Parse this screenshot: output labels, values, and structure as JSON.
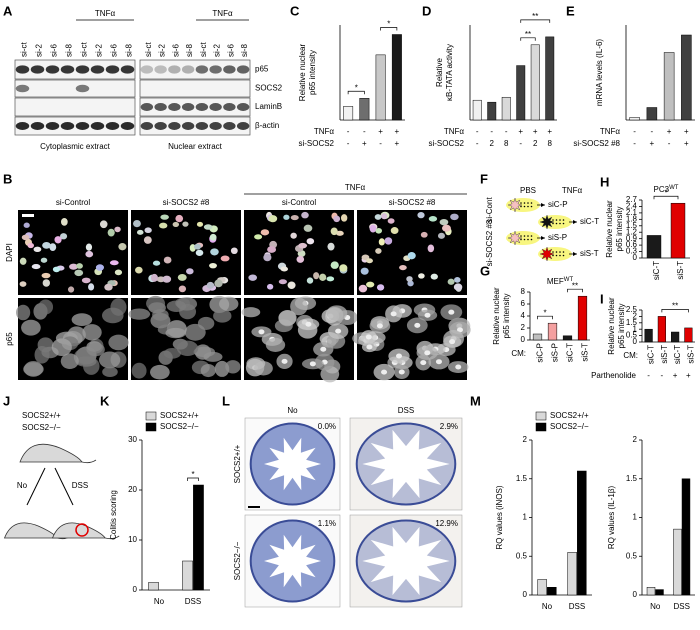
{
  "panel_labels": [
    "A",
    "B",
    "C",
    "D",
    "E",
    "F",
    "G",
    "H",
    "I",
    "J",
    "K",
    "L",
    "M"
  ],
  "blot": {
    "lanes": [
      "si-ct",
      "si-2",
      "si-6",
      "si-8",
      "si-ct",
      "si-2",
      "si-6",
      "si-8"
    ],
    "treatment": "TNFα",
    "proteins": [
      "p65",
      "SOCS2",
      "LaminB",
      "β-actin"
    ],
    "extracts": [
      "Cytoplasmic extract",
      "Nuclear extract"
    ]
  },
  "microscopy": {
    "columns": [
      "si-Control",
      "si-SOCS2 #8",
      "si-Control",
      "si-SOCS2 #8"
    ],
    "treatment": "TNFα",
    "rows": [
      "DAPI",
      "p65"
    ]
  },
  "diagram_f": {
    "conditions": [
      "PBS",
      "TNFα"
    ],
    "rows": [
      "si-Cont",
      "si-SOCS2 #8"
    ],
    "media": [
      "siC-P",
      "siC-T",
      "siS-P",
      "siS-T"
    ]
  },
  "diagram_j": {
    "genotypes": [
      "SOCS2+/+",
      "SOCS2−/−"
    ],
    "treatments": [
      "No",
      "DSS"
    ]
  },
  "histology": {
    "columns": [
      "No",
      "DSS"
    ],
    "rows": [
      "SOCS2+/+",
      "SOCS2−/−"
    ],
    "percentages": [
      [
        "0.0%",
        "2.9%"
      ],
      [
        "1.1%",
        "12.9%"
      ]
    ]
  },
  "chart_data": [
    {
      "type": "bar",
      "ylabel": [
        "Relative nuclear",
        "p65 intensity"
      ],
      "values": [
        1.0,
        1.6,
        4.8,
        6.3
      ],
      "colors": [
        "#f2f2f2",
        "#6e6e6e",
        "#c8c8c8",
        "#1a1a1a"
      ],
      "ylim": [
        0,
        7
      ],
      "condition_rows": [
        {
          "label": "TNFα",
          "values": [
            "-",
            "-",
            "+",
            "+"
          ]
        },
        {
          "label": "si-SOCS2",
          "values": [
            "-",
            "+",
            "-",
            "+"
          ]
        }
      ],
      "annotations": [
        "*",
        "*"
      ]
    },
    {
      "type": "bar",
      "ylabel": [
        "Relative",
        "κB-TATA activity"
      ],
      "values": [
        1.0,
        0.9,
        1.15,
        2.75,
        3.8,
        4.2
      ],
      "colors": [
        "#f0f0f0",
        "#404040",
        "#d9d9d9",
        "#404040",
        "#d9d9d9",
        "#404040"
      ],
      "ylim": [
        0,
        4.8
      ],
      "condition_rows": [
        {
          "label": "TNFα",
          "values": [
            "-",
            "-",
            "-",
            "+",
            "+",
            "+"
          ]
        },
        {
          "label": "si-SOCS2",
          "values": [
            "-",
            "2",
            "8",
            "-",
            "2",
            "8"
          ]
        }
      ],
      "annotations": [
        "**",
        "**"
      ]
    },
    {
      "type": "bar",
      "ylabel": [
        "mRNA levels (IL-6)"
      ],
      "values": [
        1,
        5,
        27,
        34
      ],
      "colors": [
        "#f0f0f0",
        "#404040",
        "#bfbfbf",
        "#404040"
      ],
      "ylim": [
        0,
        38
      ],
      "condition_rows": [
        {
          "label": "TNFα",
          "values": [
            "-",
            "-",
            "+",
            "+"
          ]
        },
        {
          "label": "si-SOCS2 #8",
          "values": [
            "-",
            "+",
            "-",
            "+"
          ]
        }
      ]
    },
    {
      "type": "bar",
      "title": "MEF",
      "title_sup": "WT",
      "ylabel": [
        "Relative nuclear",
        "p65 intensity"
      ],
      "values": [
        1.0,
        2.8,
        0.7,
        7.3
      ],
      "colors": [
        "#bfbfbf",
        "#f4a0a0",
        "#1a1a1a",
        "#e00000"
      ],
      "ylim": [
        0,
        8
      ],
      "yticks": [
        0,
        2,
        4,
        6,
        8
      ],
      "categories": [
        "siC-P",
        "siS-P",
        "siC-T",
        "siS-T"
      ],
      "category_prefix": "CM:",
      "annotations": [
        "*",
        "**"
      ]
    },
    {
      "type": "bar",
      "title": "PC3",
      "title_sup": "WT",
      "ylabel": [
        "Relative nuclear",
        "p65 intensity"
      ],
      "values": [
        1.05,
        2.55
      ],
      "colors": [
        "#1a1a1a",
        "#e00000"
      ],
      "ylim": [
        0,
        2.7
      ],
      "yticks": [
        0,
        0.3,
        0.6,
        0.9,
        1.2,
        1.5,
        1.8,
        2.1,
        2.4,
        2.7
      ],
      "categories": [
        "siC-T",
        "siS-T"
      ],
      "annotations": [
        "*"
      ]
    },
    {
      "type": "bar",
      "ylabel": [
        "Relative nuclear",
        "p65 intensity"
      ],
      "values": [
        1.0,
        2.0,
        0.78,
        1.1
      ],
      "colors": [
        "#1a1a1a",
        "#e00000",
        "#1a1a1a",
        "#e00000"
      ],
      "ylim": [
        0,
        2.5
      ],
      "yticks": [
        0,
        0.5,
        1,
        1.5,
        2,
        2.5
      ],
      "categories": [
        "siC-T",
        "siS-T",
        "siC-T",
        "siS-T"
      ],
      "category_prefix": "CM:",
      "condition_rows": [
        {
          "label": "Parthenolide",
          "values": [
            "-",
            "-",
            "+",
            "+"
          ]
        }
      ],
      "annotations": [
        "**"
      ]
    },
    {
      "type": "bar",
      "ylabel": [
        "Colitis scoring"
      ],
      "categories": [
        "No",
        "DSS"
      ],
      "series": [
        {
          "name": "SOCS2+/+",
          "color": "#d9d9d9",
          "values": [
            1.5,
            5.8
          ]
        },
        {
          "name": "SOCS2−/−",
          "color": "#000000",
          "values": [
            0,
            21
          ]
        }
      ],
      "ylim": [
        0,
        30
      ],
      "yticks": [
        0,
        10,
        20,
        30
      ],
      "legend": true,
      "annotations": [
        "*"
      ]
    },
    {
      "type": "bar",
      "ylabel": [
        "RQ values (iNOS)"
      ],
      "categories": [
        "No",
        "DSS"
      ],
      "series": [
        {
          "name": "SOCS2+/+",
          "color": "#d9d9d9",
          "values": [
            0.2,
            0.55
          ]
        },
        {
          "name": "SOCS2−/−",
          "color": "#000000",
          "values": [
            0.1,
            1.6
          ]
        }
      ],
      "ylim": [
        0,
        2
      ],
      "yticks": [
        0,
        0.5,
        1,
        1.5,
        2
      ],
      "legend": true
    },
    {
      "type": "bar",
      "ylabel": [
        "RQ values (IL-1β)"
      ],
      "categories": [
        "No",
        "DSS"
      ],
      "series": [
        {
          "color": "#d9d9d9",
          "values": [
            0.1,
            0.85
          ]
        },
        {
          "color": "#000000",
          "values": [
            0.07,
            1.5
          ]
        }
      ],
      "ylim": [
        0,
        2
      ],
      "yticks": [
        0,
        0.5,
        1,
        1.5,
        2
      ]
    }
  ]
}
